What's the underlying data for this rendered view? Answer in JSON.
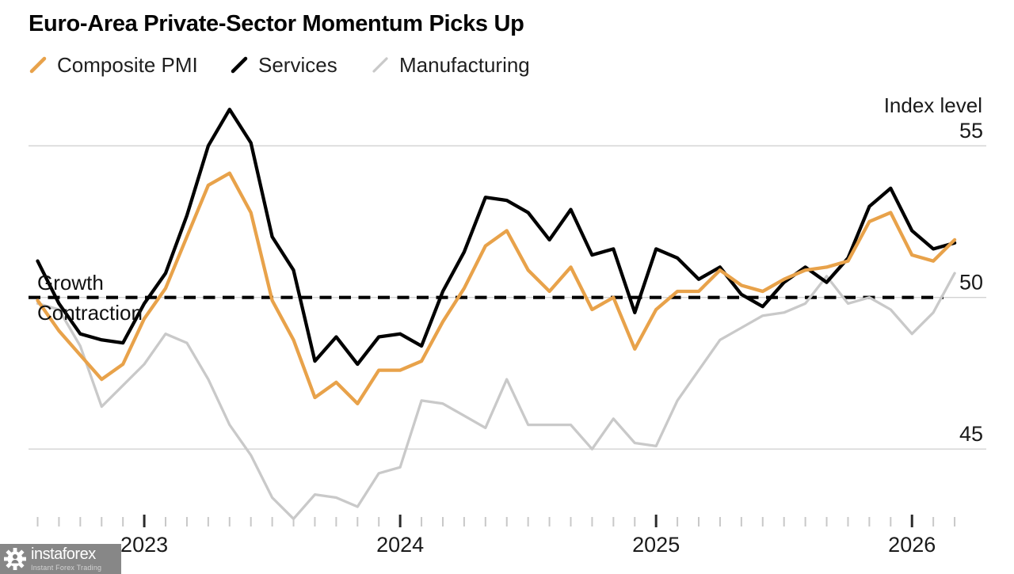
{
  "watermark": {
    "brand": "instaforex",
    "tagline": "Instant Forex Trading"
  },
  "chart_data": {
    "type": "line",
    "title": "Euro-Area Private-Sector Momentum Picks Up",
    "y_label": "Index level",
    "x": [
      "Jul 2022",
      "Aug 2022",
      "Sep 2022",
      "Oct 2022",
      "Nov 2022",
      "Dec 2022",
      "Jan 2023",
      "Feb 2023",
      "Mar 2023",
      "Apr 2023",
      "May 2023",
      "Jun 2023",
      "Jul 2023",
      "Aug 2023",
      "Sep 2023",
      "Oct 2023",
      "Nov 2023",
      "Dec 2023",
      "Jan 2024",
      "Feb 2024",
      "Mar 2024",
      "Apr 2024",
      "May 2024",
      "Jun 2024",
      "Jul 2024",
      "Aug 2024",
      "Sep 2024",
      "Oct 2024",
      "Nov 2024",
      "Dec 2024",
      "Jan 2025",
      "Feb 2025",
      "Mar 2025",
      "Apr 2025",
      "May 2025",
      "Jun 2025",
      "Jul 2025",
      "Aug 2025",
      "Sep 2025",
      "Oct 2025",
      "Nov 2025",
      "Dec 2025",
      "Jan 2026",
      "Feb 2026"
    ],
    "series": [
      {
        "name": "Composite PMI",
        "color": "#E8A24A",
        "values": [
          49.9,
          48.9,
          48.1,
          47.3,
          47.8,
          49.3,
          50.3,
          52.0,
          53.7,
          54.1,
          52.8,
          49.9,
          48.6,
          46.7,
          47.2,
          46.5,
          47.6,
          47.6,
          47.9,
          49.2,
          50.3,
          51.7,
          52.2,
          50.9,
          50.2,
          51.0,
          49.6,
          50.0,
          48.3,
          49.6,
          50.2,
          50.2,
          50.9,
          50.4,
          50.2,
          50.6,
          50.9,
          51.0,
          51.2,
          52.5,
          52.8,
          51.4,
          51.2,
          51.9
        ]
      },
      {
        "name": "Services",
        "color": "#000000",
        "values": [
          51.2,
          49.8,
          48.8,
          48.6,
          48.5,
          49.8,
          50.8,
          52.7,
          55.0,
          56.2,
          55.1,
          52.0,
          50.9,
          47.9,
          48.7,
          47.8,
          48.7,
          48.8,
          48.4,
          50.2,
          51.5,
          53.3,
          53.2,
          52.8,
          51.9,
          52.9,
          51.4,
          51.6,
          49.5,
          51.6,
          51.3,
          50.6,
          51.0,
          50.1,
          49.7,
          50.5,
          51.0,
          50.5,
          51.3,
          53.0,
          53.6,
          52.2,
          51.6,
          51.8
        ]
      },
      {
        "name": "Manufacturing",
        "color": "#C9C9C9",
        "values": [
          49.8,
          49.6,
          48.4,
          46.4,
          47.1,
          47.8,
          48.8,
          48.5,
          47.3,
          45.8,
          44.8,
          43.4,
          42.7,
          43.5,
          43.4,
          43.1,
          44.2,
          44.4,
          46.6,
          46.5,
          46.1,
          45.7,
          47.3,
          45.8,
          45.8,
          45.8,
          45.0,
          46.0,
          45.2,
          45.1,
          46.6,
          47.6,
          48.6,
          49.0,
          49.4,
          49.5,
          49.8,
          50.7,
          49.8,
          50.0,
          49.6,
          48.8,
          49.5,
          50.8
        ]
      }
    ],
    "y_ticks": [
      55,
      50,
      45
    ],
    "ylim": [
      42.5,
      57.5
    ],
    "x_year_ticks": [
      "2023",
      "2024",
      "2025",
      "2026"
    ],
    "baseline": {
      "value": 50,
      "style": "dashed",
      "label_above": "Growth",
      "label_below": "Contraction"
    },
    "grid": "horizontal",
    "legend_position": "top-left"
  }
}
